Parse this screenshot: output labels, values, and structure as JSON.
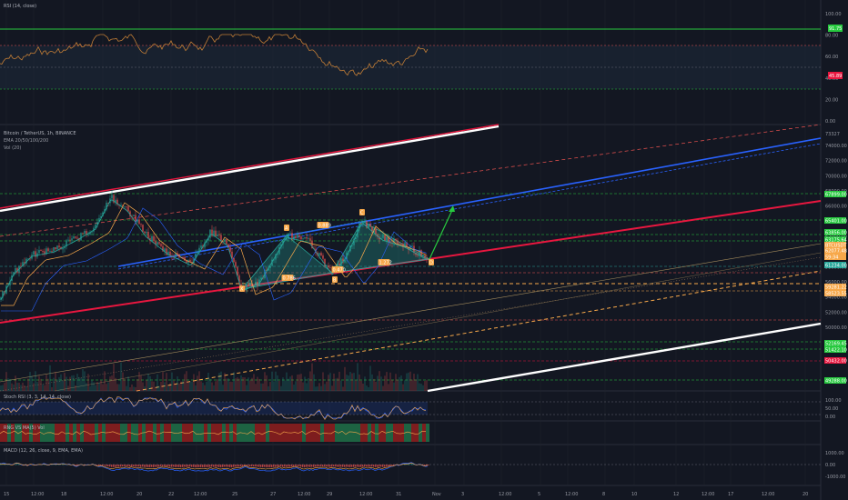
{
  "colors": {
    "background": "#131722",
    "green": "#26a69a",
    "red": "#ef5350",
    "rsi_line": "#c17d36",
    "orange": "#f7a84a",
    "accent_green": "#27c93f",
    "blue": "#2962ff",
    "white_channel": "#ffffff",
    "red_channel": "#e8173f"
  },
  "rsi_panel": {
    "title": "RSI (14, close)",
    "axis": [
      "100.00",
      "80.00",
      "60.00",
      "40.00",
      "20.00",
      "0.00"
    ],
    "tag_top": "91.75",
    "tag_value": "45.89"
  },
  "main_panel": {
    "title": "Bitcoin / TetherUS, 1h, BINANCE",
    "indicators": [
      "EMA 20/50/100/200",
      "Vol (20)"
    ],
    "axis": [
      "74000.00",
      "72000.00",
      "70000.00",
      "68000.00",
      "66000.00",
      "64000.00",
      "62000.00",
      "60000.00",
      "58000.00",
      "56000.00",
      "54000.00",
      "52000.00",
      "50000.00"
    ],
    "axis_top": "73327",
    "price_tags": [
      {
        "text": "67899.00",
        "color": "#27c93f",
        "name": "tag-resistance-1"
      },
      {
        "text": "65401.00",
        "color": "#27c93f",
        "name": "tag-resistance-2"
      },
      {
        "text": "63856.00",
        "color": "#27c93f",
        "name": "tag-level-3"
      },
      {
        "text": "63175.64",
        "color": "#27c93f",
        "name": "tag-level-4"
      },
      {
        "text": "BTCUSDT",
        "color": "#f7a84a",
        "name": "tag-symbol"
      },
      {
        "text": "62077.48",
        "color": "#f7a84a",
        "name": "tag-last-price"
      },
      {
        "text": "59:34",
        "color": "#f7a84a",
        "name": "tag-countdown"
      },
      {
        "text": "61234.00",
        "color": "#26a69a",
        "name": "tag-support-1"
      },
      {
        "text": "59281.22",
        "color": "#f7a84a",
        "name": "tag-support-2"
      },
      {
        "text": "58523.55",
        "color": "#f7a84a",
        "name": "tag-support-3"
      },
      {
        "text": "52169.45",
        "color": "#27c93f",
        "name": "tag-support-4"
      },
      {
        "text": "51422.10",
        "color": "#27c93f",
        "name": "tag-support-5"
      },
      {
        "text": "50432.00",
        "color": "#e8173f",
        "name": "tag-support-6"
      },
      {
        "text": "49288.00",
        "color": "#27c93f",
        "name": "tag-support-7"
      }
    ],
    "pattern_labels": [
      {
        "text": "X",
        "name": "pattern-point-x"
      },
      {
        "text": "A",
        "name": "pattern-point-a"
      },
      {
        "text": "B",
        "name": "pattern-point-b"
      },
      {
        "text": "C",
        "name": "pattern-point-c"
      },
      {
        "text": "D",
        "name": "pattern-point-d"
      },
      {
        "text": "0.786",
        "name": "ratio-xb"
      },
      {
        "text": "0.889",
        "name": "ratio-ac"
      },
      {
        "text": "0.470",
        "name": "ratio-bd"
      },
      {
        "text": "1.272",
        "name": "ratio-xd"
      }
    ]
  },
  "stoch_panel": {
    "title": "Stoch RSI (3, 3, 14, 14, close)",
    "axis": [
      "100.00",
      "50.00",
      "0.00"
    ]
  },
  "ma_panel": {
    "title": "RNG VS MA(5) Vol"
  },
  "macd_panel": {
    "title": "MACD (12, 26, close, 9, EMA, EMA)",
    "axis": [
      "1000.00",
      "0.00",
      "-1000.00"
    ]
  },
  "time_axis": [
    "15",
    "12:00",
    "18",
    "12:00",
    "20",
    "22",
    "12:00",
    "25",
    "27",
    "12:00",
    "29",
    "12:00",
    "31",
    "Nov",
    "3",
    "12:00",
    "5",
    "12:00",
    "8",
    "10",
    "12",
    "12:00",
    "17",
    "12:00",
    "20",
    "12:00",
    "22",
    "24",
    "26"
  ]
}
